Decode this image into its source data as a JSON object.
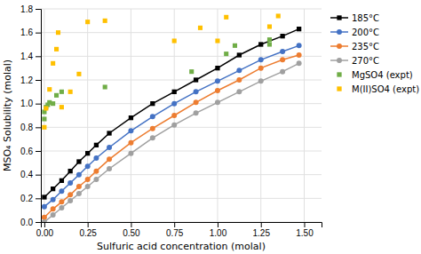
{
  "chart_data": {
    "type": "line",
    "x_label": "Sulfuric acid concentration (molal)",
    "y_label": "MSO₄ Solubility (molal)",
    "xlim": [
      -0.02,
      1.6
    ],
    "ylim": [
      0.0,
      1.8
    ],
    "xticks": [
      {
        "value": 0.0,
        "label": "0.00"
      },
      0.25,
      {
        "value": 0.5,
        "label": "0.50"
      },
      0.75,
      {
        "value": 1.0,
        "label": "1.00"
      },
      1.25,
      {
        "value": 1.5,
        "label": "1.50"
      }
    ],
    "yticks": [
      {
        "value": 0.0,
        "label": "0.0"
      },
      0.2,
      0.4,
      0.6,
      0.8,
      {
        "value": 1.0,
        "label": "1.0"
      },
      1.2,
      1.4,
      1.6,
      1.8
    ],
    "grid": true,
    "legend": "right",
    "series": [
      {
        "name": "185°C",
        "type": "line",
        "marker": "square",
        "color": "#000000",
        "x": [
          0.0,
          0.05,
          0.1,
          0.15,
          0.2,
          0.25,
          0.3,
          0.375,
          0.5,
          0.625,
          0.75,
          0.875,
          1.0,
          1.125,
          1.25,
          1.375,
          1.47
        ],
        "values": [
          0.21,
          0.28,
          0.35,
          0.43,
          0.51,
          0.58,
          0.65,
          0.75,
          0.88,
          1.0,
          1.1,
          1.2,
          1.3,
          1.41,
          1.5,
          1.57,
          1.63
        ]
      },
      {
        "name": "200°C",
        "type": "line",
        "marker": "circle",
        "color": "#4472C4",
        "x": [
          0.0,
          0.05,
          0.1,
          0.15,
          0.2,
          0.25,
          0.3,
          0.375,
          0.5,
          0.625,
          0.75,
          0.875,
          1.0,
          1.125,
          1.25,
          1.375,
          1.47
        ],
        "values": [
          0.13,
          0.19,
          0.26,
          0.33,
          0.4,
          0.47,
          0.54,
          0.63,
          0.77,
          0.89,
          1.0,
          1.1,
          1.19,
          1.28,
          1.37,
          1.44,
          1.49
        ]
      },
      {
        "name": "235°C",
        "type": "line",
        "marker": "circle",
        "color": "#ED7D31",
        "x": [
          0.0,
          0.05,
          0.1,
          0.15,
          0.2,
          0.25,
          0.3,
          0.375,
          0.5,
          0.625,
          0.75,
          0.875,
          1.0,
          1.125,
          1.25,
          1.375,
          1.47
        ],
        "values": [
          0.04,
          0.11,
          0.17,
          0.23,
          0.3,
          0.36,
          0.43,
          0.53,
          0.67,
          0.79,
          0.9,
          1.01,
          1.11,
          1.2,
          1.3,
          1.37,
          1.41
        ]
      },
      {
        "name": "270°C",
        "type": "line",
        "marker": "circle",
        "color": "#A0A0A0",
        "x": [
          0.0,
          0.05,
          0.1,
          0.15,
          0.2,
          0.25,
          0.3,
          0.375,
          0.5,
          0.625,
          0.75,
          0.875,
          1.0,
          1.125,
          1.25,
          1.375,
          1.47
        ],
        "values": [
          0.0,
          0.06,
          0.12,
          0.18,
          0.24,
          0.3,
          0.36,
          0.45,
          0.58,
          0.71,
          0.82,
          0.92,
          1.01,
          1.1,
          1.19,
          1.27,
          1.34
        ]
      },
      {
        "name": "MgSO4 (expt)",
        "type": "scatter",
        "marker": "square",
        "color": "#70AD47",
        "x": [
          0.0,
          0.0,
          0.01,
          0.02,
          0.03,
          0.05,
          0.07,
          0.1,
          0.35,
          0.85,
          1.05,
          1.1,
          1.3,
          1.3
        ],
        "values": [
          0.87,
          0.93,
          0.97,
          0.99,
          1.01,
          1.0,
          1.07,
          1.1,
          1.14,
          1.27,
          1.42,
          1.49,
          1.5,
          1.54
        ]
      },
      {
        "name": "M(II)SO4 (expt)",
        "type": "scatter",
        "marker": "square",
        "color": "#FFC000",
        "x": [
          0.0,
          0.01,
          0.03,
          0.05,
          0.07,
          0.08,
          0.1,
          0.15,
          0.2,
          0.25,
          0.35,
          0.75,
          0.9,
          1.0,
          1.05,
          1.3,
          1.35
        ],
        "values": [
          0.8,
          0.96,
          1.12,
          1.34,
          1.46,
          1.6,
          0.97,
          1.1,
          1.25,
          1.69,
          1.7,
          1.53,
          1.64,
          1.53,
          1.73,
          1.65,
          1.74
        ]
      }
    ]
  }
}
